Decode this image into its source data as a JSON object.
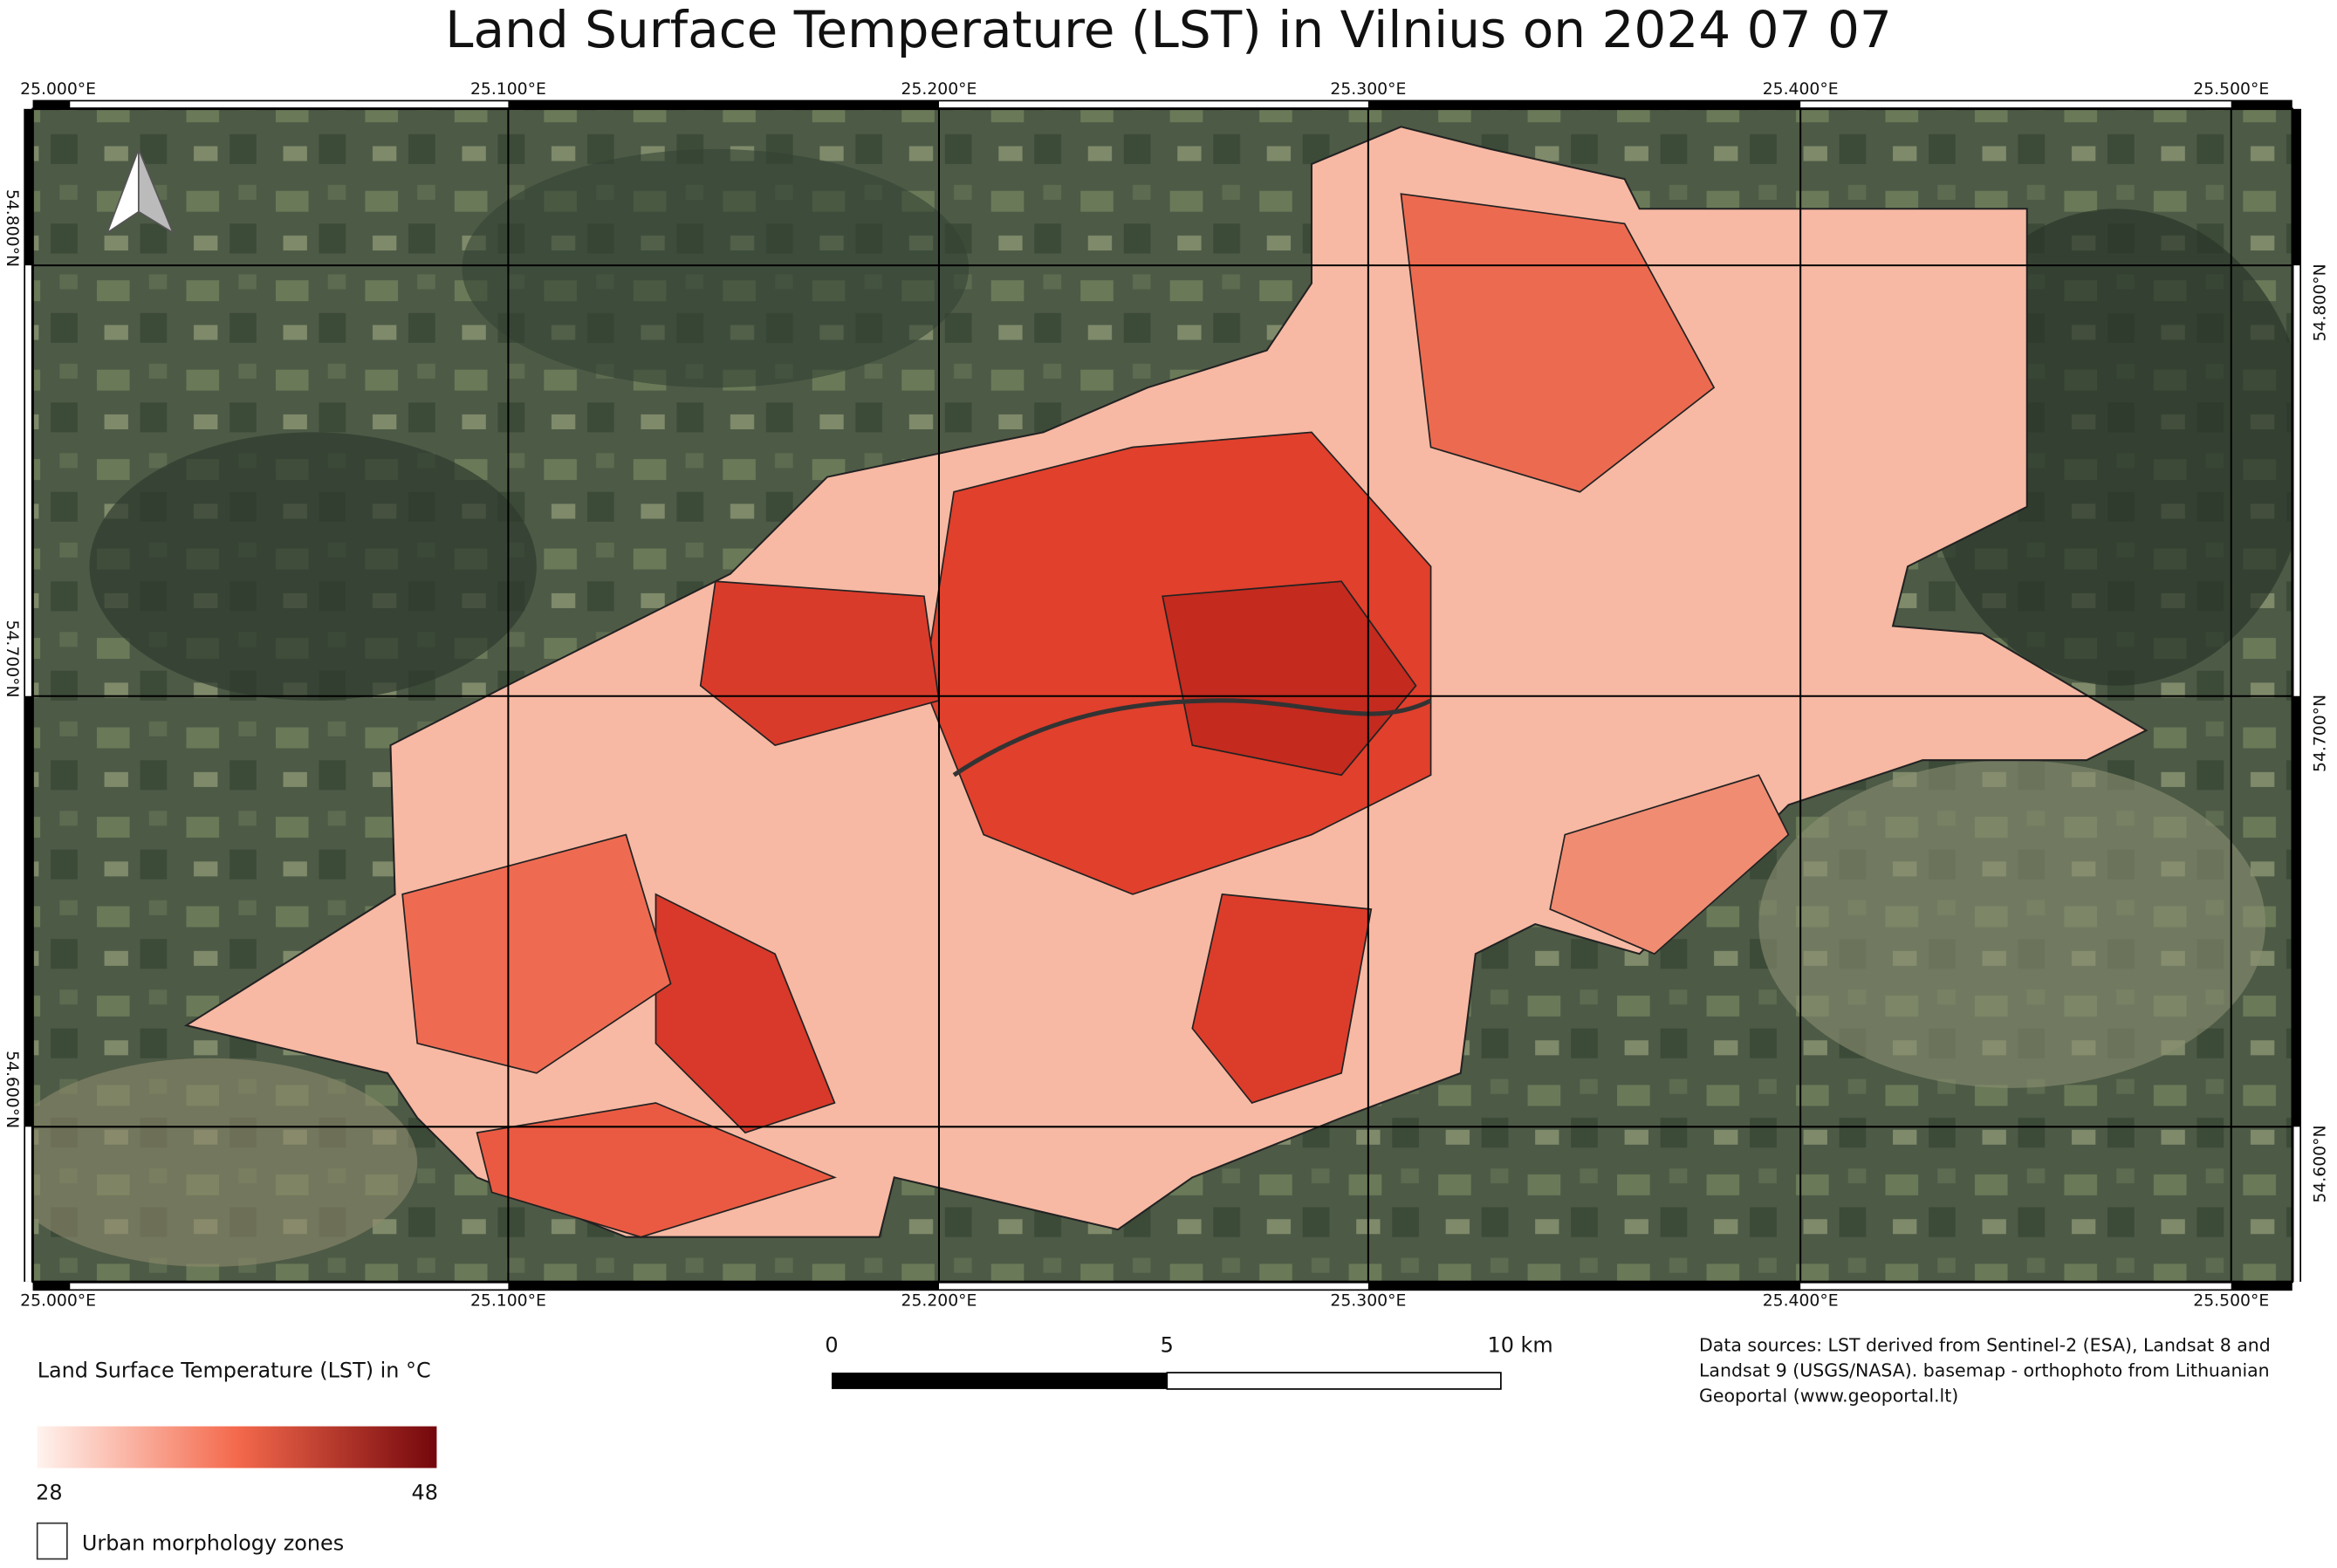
{
  "title": "Land Surface Temperature (LST) in Vilnius on 2024 07 07",
  "graticule": {
    "top": [
      "25.000°E",
      "25.100°E",
      "25.200°E",
      "25.300°E",
      "25.400°E",
      "25.500°E"
    ],
    "bottom": [
      "25.000°E",
      "25.100°E",
      "25.200°E",
      "25.300°E",
      "25.400°E",
      "25.500°E"
    ],
    "left": [
      "54.800°N",
      "54.700°N",
      "54.600°N"
    ],
    "right": [
      "54.800°N",
      "54.700°N",
      "54.600°N"
    ]
  },
  "legend": {
    "title": "Land Surface Temperature (LST) in °C",
    "min": 28,
    "max": 48,
    "zones": "Urban morphology zones"
  },
  "scale_bar": [
    "0",
    "5",
    "10 km"
  ],
  "sources": [
    "Data sources: LST derived from Sentinel-2 (ESA), Landsat 8 and",
    "Landsat 9 (USGS/NASA). basemap - orthophoto from Lithuanian",
    "Geoportal (www.geoportal.lt)"
  ]
}
